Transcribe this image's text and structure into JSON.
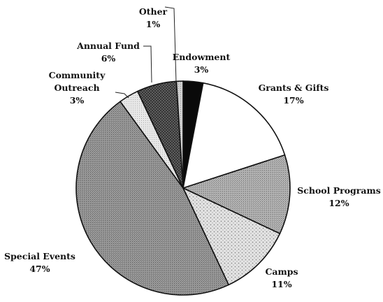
{
  "chart_data": {
    "type": "pie",
    "title": "",
    "start_angle_deg": 0,
    "direction": "clockwise",
    "slices": [
      {
        "label": "Endowment",
        "value": 3,
        "display": "3%",
        "fill": "#0a0a0a",
        "pattern": "solid-black"
      },
      {
        "label": "Grants & Gifts",
        "value": 17,
        "display": "17%",
        "fill": "#ffffff",
        "pattern": "white"
      },
      {
        "label": "School Programs",
        "value": 12,
        "display": "12%",
        "fill": "#a9a9a9",
        "pattern": "fine-grey"
      },
      {
        "label": "Camps",
        "value": 11,
        "display": "11%",
        "fill": "#dcdcdc",
        "pattern": "light-dots"
      },
      {
        "label": "Special Events",
        "value": 47,
        "display": "47%",
        "fill": "#8f8f8f",
        "pattern": "medium-grey"
      },
      {
        "label": "Community Outreach",
        "label_lines": [
          "Community",
          "Outreach"
        ],
        "value": 3,
        "display": "3%",
        "fill": "#e6e6e6",
        "pattern": "light-grey"
      },
      {
        "label": "Annual Fund",
        "value": 6,
        "display": "6%",
        "fill": "#555555",
        "pattern": "dark-crosshatch"
      },
      {
        "label": "Other",
        "value": 1,
        "display": "1%",
        "fill": "#cfcfcf",
        "pattern": "light-grey-2"
      }
    ]
  }
}
